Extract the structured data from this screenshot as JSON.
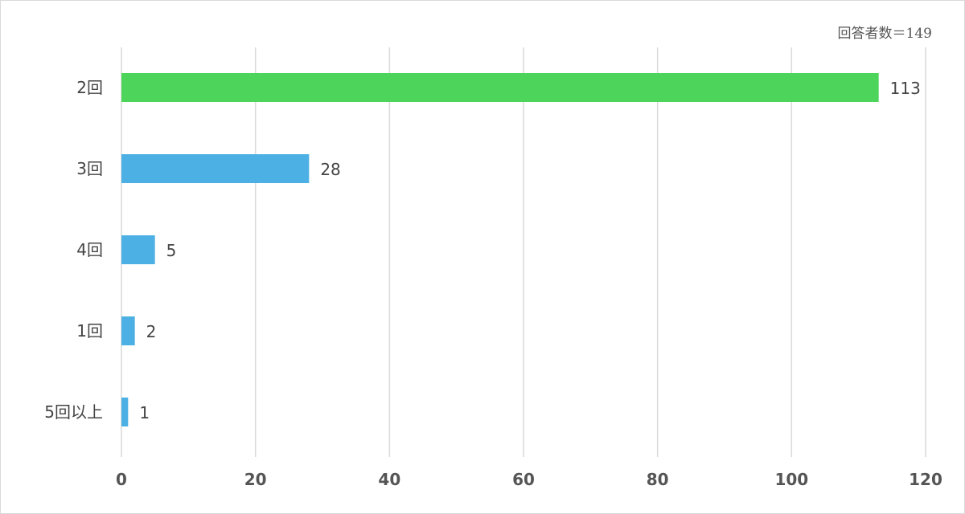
{
  "respondents_note": "回答者数＝149",
  "colors": {
    "highlight": "#4cd45b",
    "default": "#4cb0e4",
    "grid": "#d9d9d9",
    "text": "#444444"
  },
  "chart_data": {
    "type": "bar",
    "orientation": "horizontal",
    "categories": [
      "2回",
      "3回",
      "4回",
      "1回",
      "5回以上"
    ],
    "values": [
      113,
      28,
      5,
      2,
      1
    ],
    "xlim": [
      0,
      120
    ],
    "xticks": [
      0,
      20,
      40,
      60,
      80,
      100,
      120
    ],
    "data_labels": [
      "113",
      "28",
      "5",
      "2",
      "1"
    ],
    "grid": "vertical",
    "legend": "none",
    "highlight_index": 0
  }
}
